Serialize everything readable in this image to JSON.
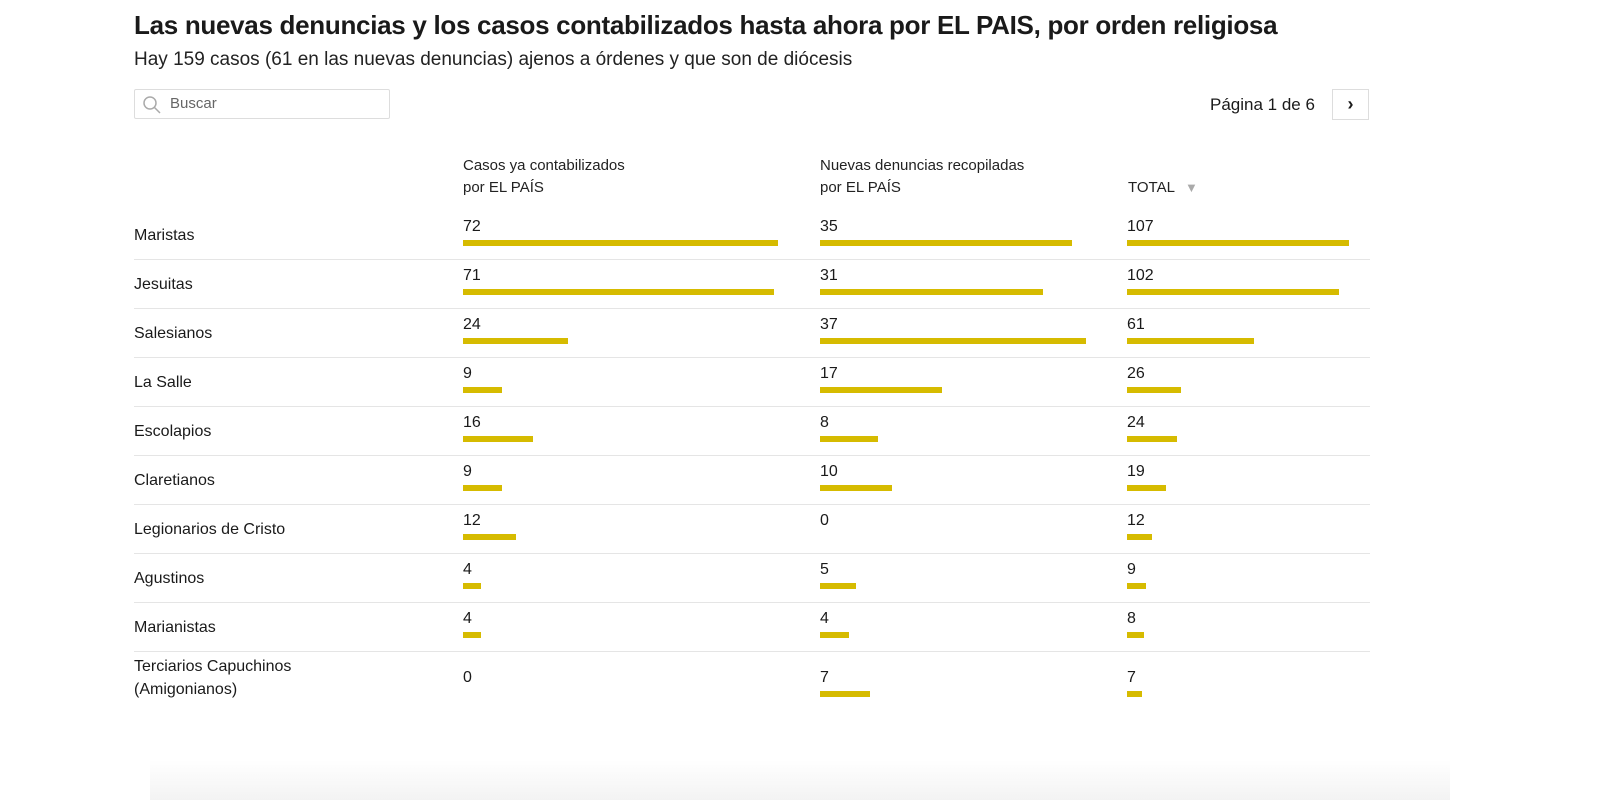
{
  "header": {
    "title": "Las nuevas denuncias y los casos contabilizados hasta ahora por EL PAIS, por orden religiosa",
    "subtitle": "Hay 159 casos (61 en las nuevas denuncias) ajenos a órdenes y que son de diócesis"
  },
  "search": {
    "placeholder": "Buscar",
    "value": "",
    "icon": "search-icon"
  },
  "pagination": {
    "label": "Página 1 de 6",
    "next_icon": "chevron-right-icon",
    "next_label": "›"
  },
  "colors": {
    "bar": "#d6bb00"
  },
  "chart_data": {
    "type": "table",
    "columns": [
      "Casos ya contabilizados por EL PAÍS",
      "Nuevas denuncias recopiladas por EL PAÍS",
      "TOTAL"
    ],
    "column_lines": [
      [
        "Casos ya contabilizados",
        "por EL PAÍS"
      ],
      [
        "Nuevas denuncias recopiladas",
        "por EL PAÍS"
      ],
      [
        "TOTAL"
      ]
    ],
    "sorted_by": "TOTAL",
    "sort_direction": "descending",
    "sort_icon": "▼",
    "rows": [
      {
        "label": "Maristas",
        "values": [
          72,
          35,
          107
        ]
      },
      {
        "label": "Jesuitas",
        "values": [
          71,
          31,
          102
        ]
      },
      {
        "label": "Salesianos",
        "values": [
          24,
          37,
          61
        ]
      },
      {
        "label": "La Salle",
        "values": [
          9,
          17,
          26
        ]
      },
      {
        "label": "Escolapios",
        "values": [
          16,
          8,
          24
        ]
      },
      {
        "label": "Claretianos",
        "values": [
          9,
          10,
          19
        ]
      },
      {
        "label": "Legionarios de Cristo",
        "values": [
          12,
          0,
          12
        ]
      },
      {
        "label": "Agustinos",
        "values": [
          4,
          5,
          9
        ]
      },
      {
        "label": "Marianistas",
        "values": [
          4,
          4,
          8
        ]
      },
      {
        "label": "Terciarios Capuchinos (Amigonianos)",
        "lines": [
          "Terciarios Capuchinos",
          "(Amigonianos)"
        ],
        "values": [
          0,
          7,
          7
        ]
      }
    ]
  }
}
